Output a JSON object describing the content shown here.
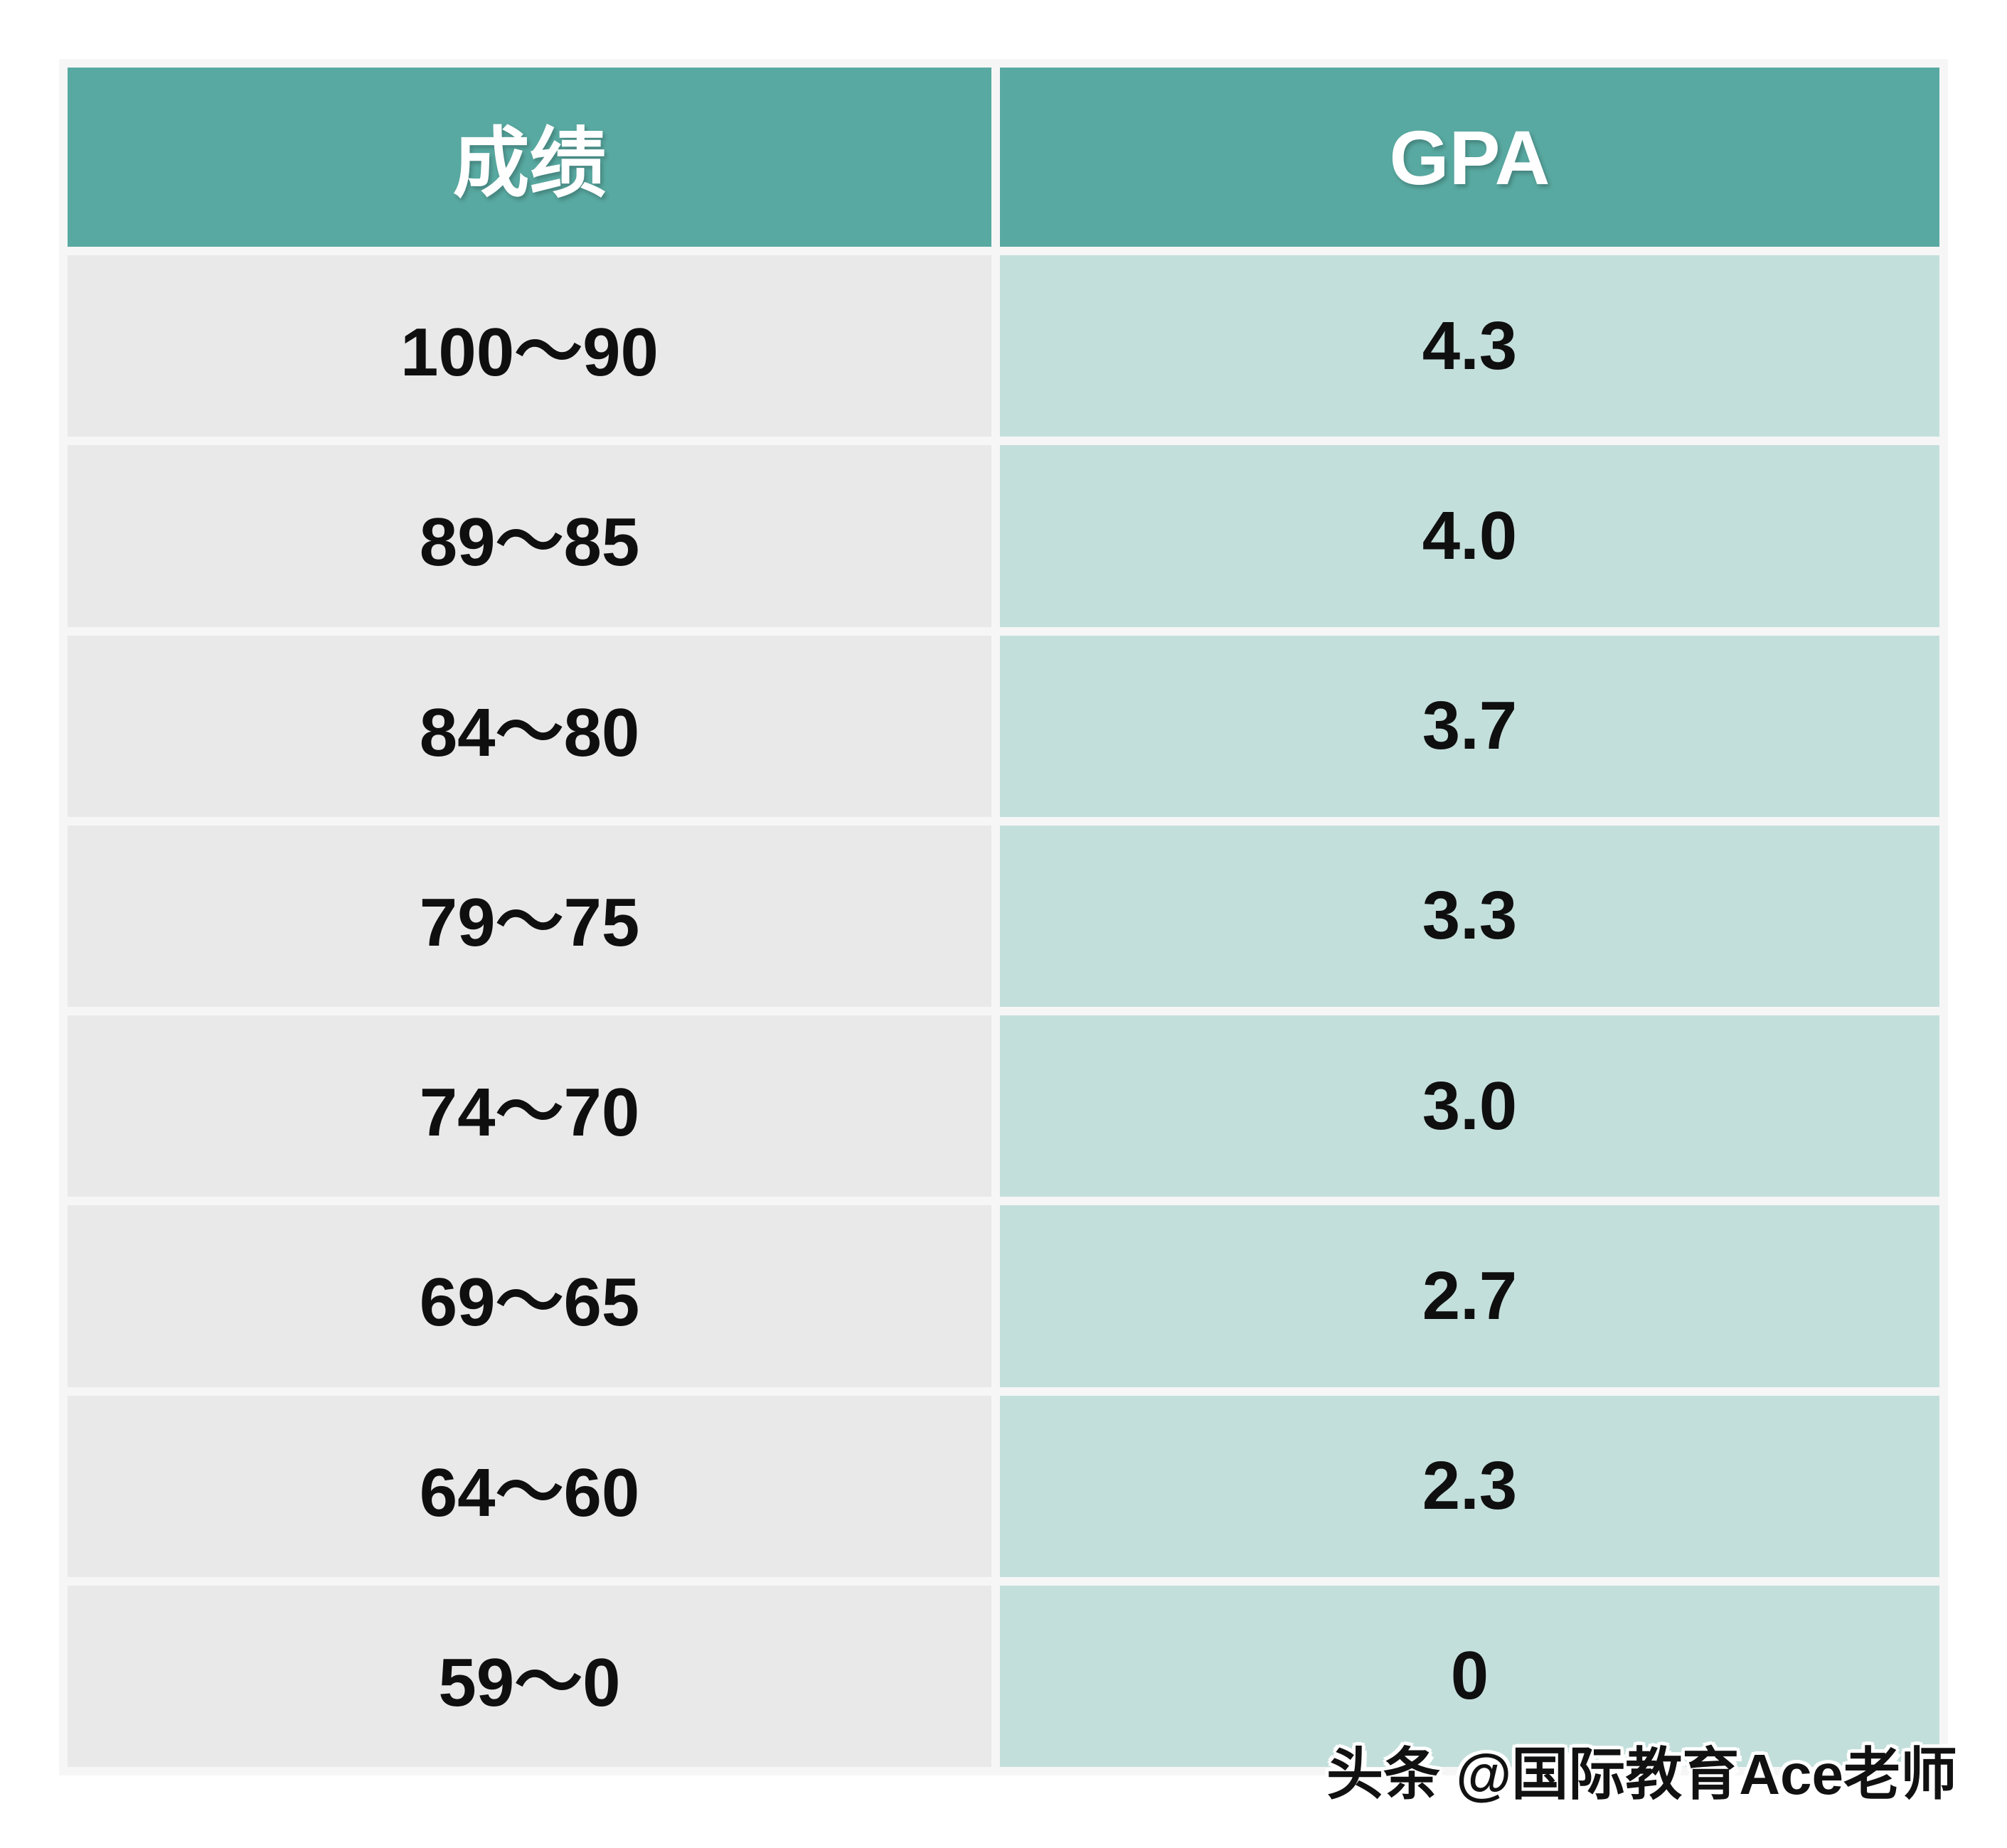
{
  "table": {
    "columns": [
      {
        "label": "成绩"
      },
      {
        "label": "GPA"
      }
    ],
    "rows": [
      {
        "score": "100～90",
        "gpa": "4.3"
      },
      {
        "score": "89～85",
        "gpa": "4.0"
      },
      {
        "score": "84～80",
        "gpa": "3.7"
      },
      {
        "score": "79～75",
        "gpa": "3.3"
      },
      {
        "score": "74～70",
        "gpa": "3.0"
      },
      {
        "score": "69～65",
        "gpa": "2.7"
      },
      {
        "score": "64～60",
        "gpa": "2.3"
      },
      {
        "score": "59～0",
        "gpa": "0"
      }
    ]
  },
  "watermark": {
    "text": "头条 @国际教育Ace老师"
  },
  "colors": {
    "header_bg": "#58a9a1",
    "header_text": "#ffffff",
    "score_cell_bg": "#e9e9e9",
    "gpa_cell_bg": "#c3dfdb",
    "cell_text": "#0f0f0f",
    "grid_gap": "#f6f6f6",
    "page_bg": "#ffffff"
  },
  "chart_data": {
    "type": "table",
    "title": "成绩 到 GPA 换算表",
    "columns": [
      "成绩",
      "GPA"
    ],
    "categories": [
      "100～90",
      "89～85",
      "84～80",
      "79～75",
      "74～70",
      "69～65",
      "64～60",
      "59～0"
    ],
    "values": [
      4.3,
      4.0,
      3.7,
      3.3,
      3.0,
      2.7,
      2.3,
      0
    ],
    "legend_position": "none",
    "grid": false,
    "annotations": [
      "头条 @国际教育Ace老师"
    ]
  }
}
